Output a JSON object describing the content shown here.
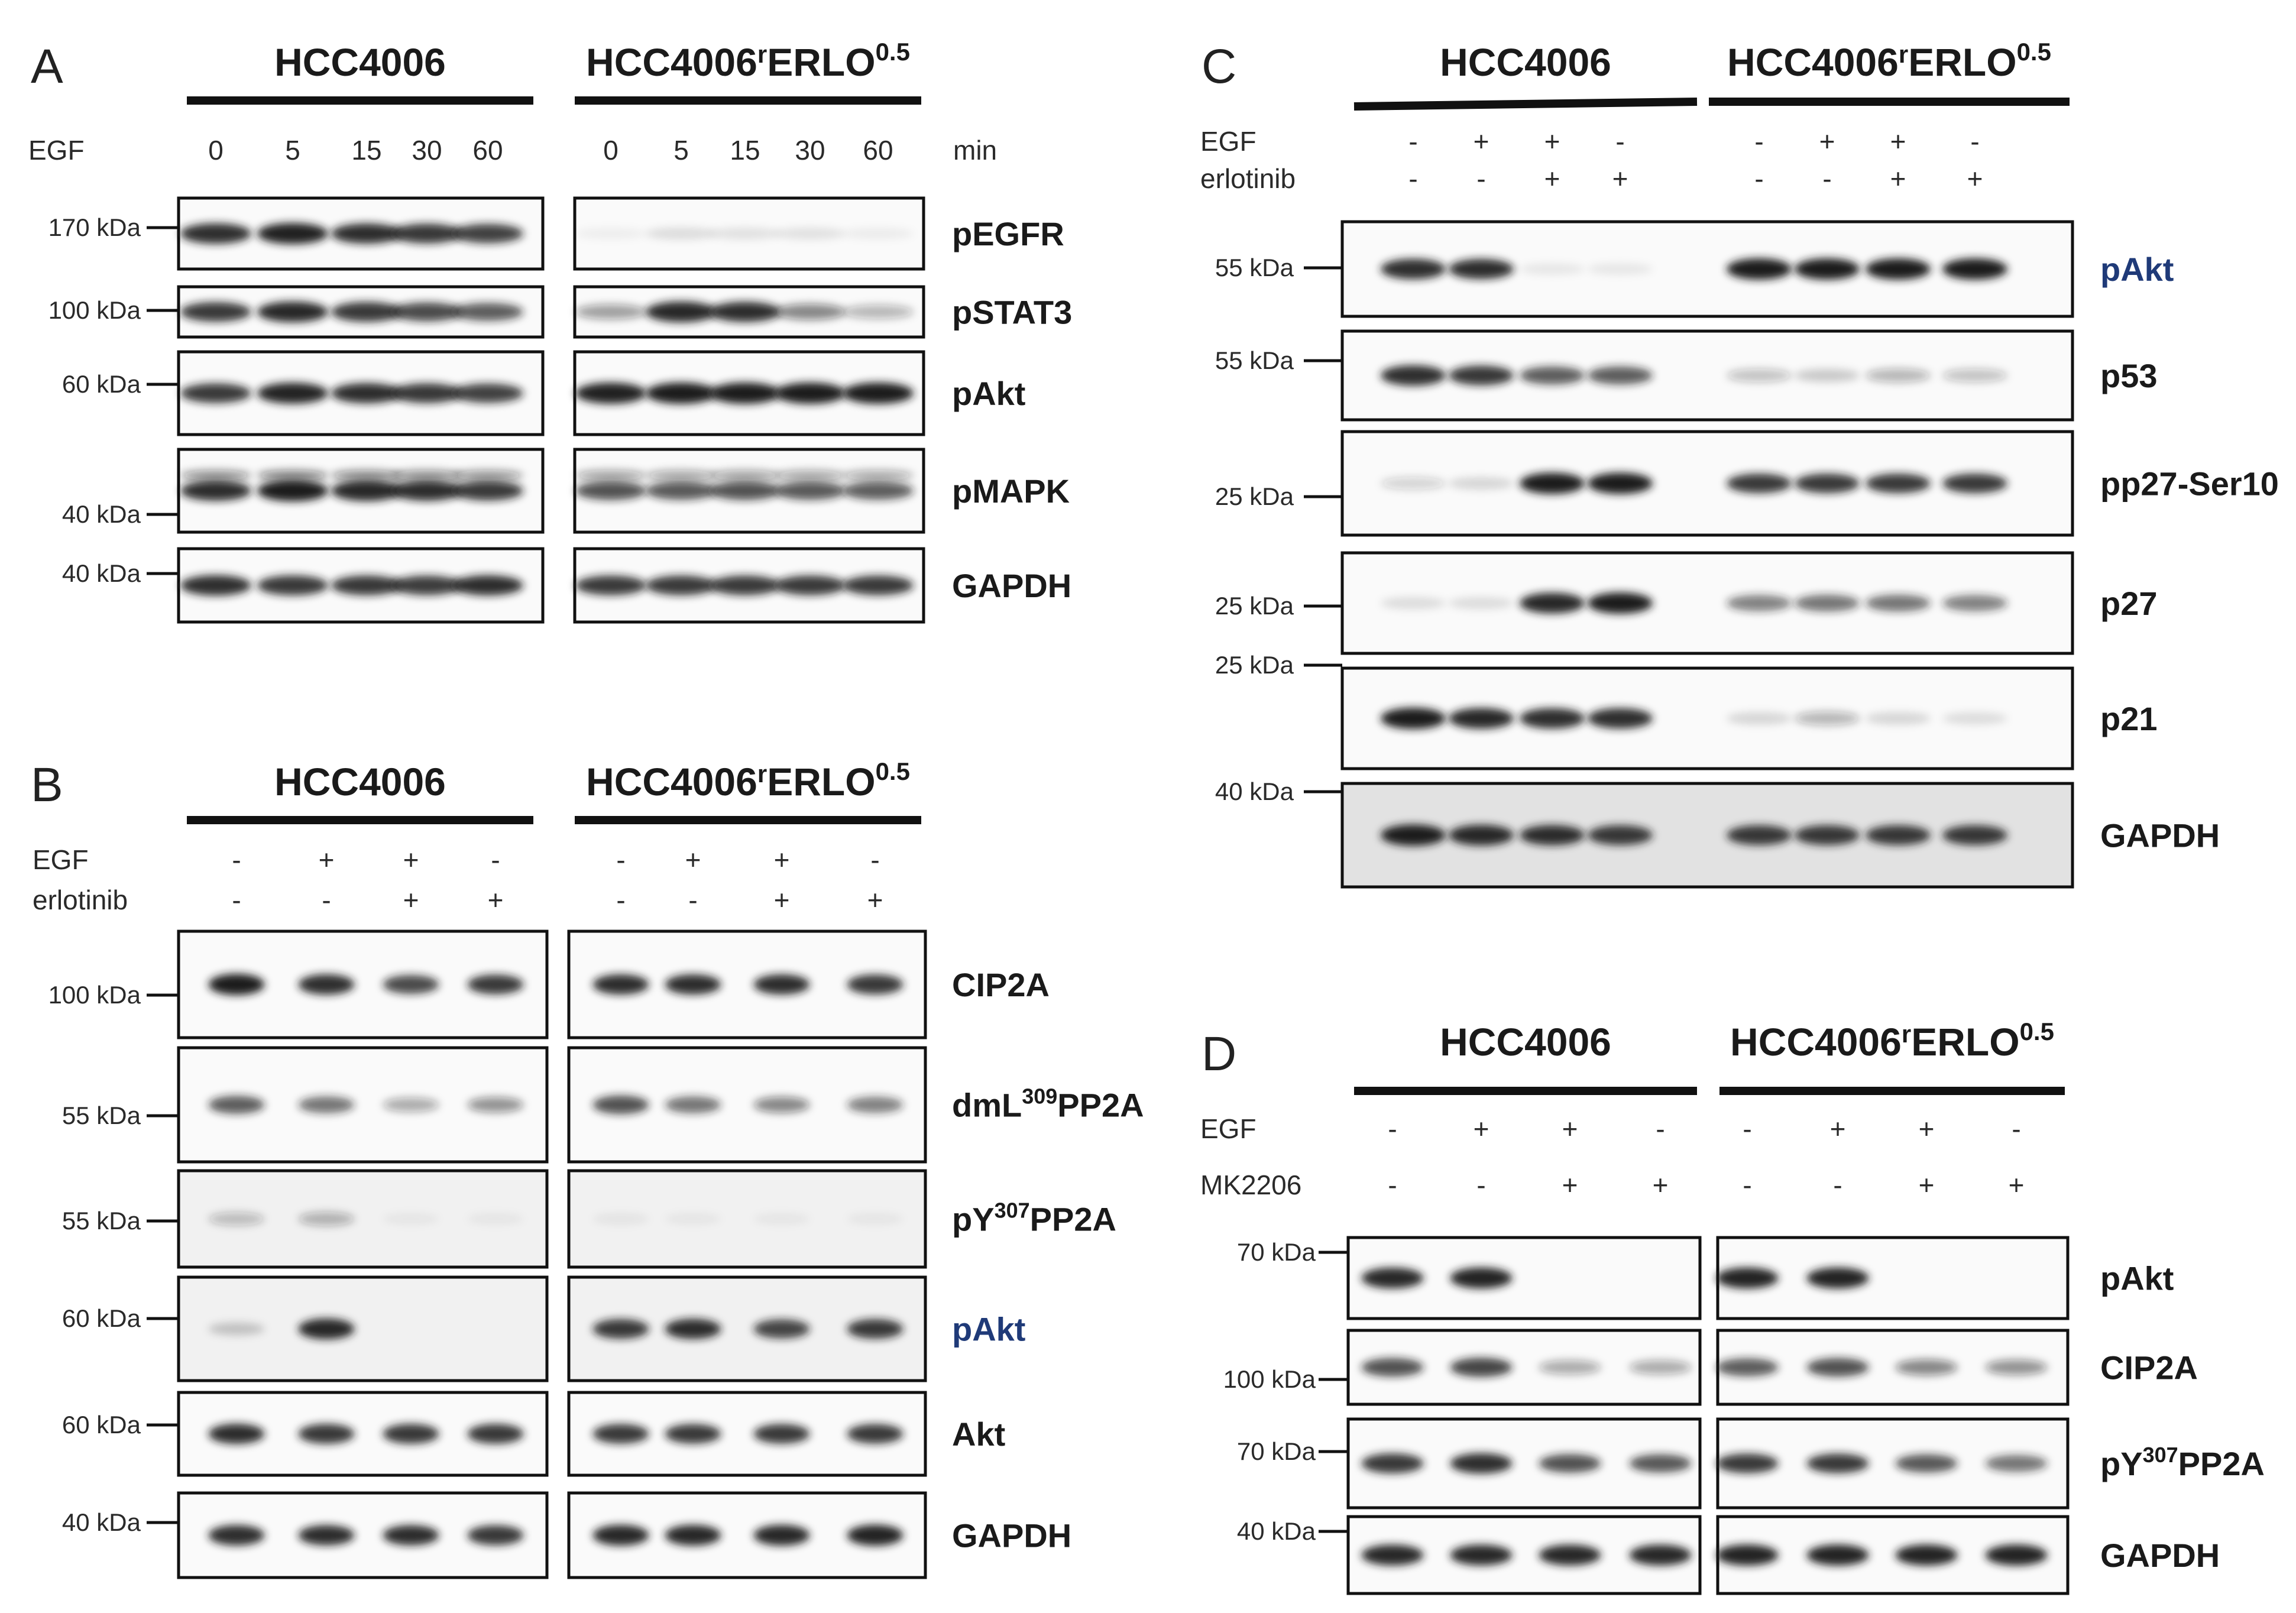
{
  "panels": [
    {
      "letter": "A",
      "groups": [
        {
          "name": "HCC4006"
        },
        {
          "name": "HCC4006",
          "sup": "r",
          "rest": "ERLO",
          "sup2": "0.5"
        }
      ],
      "treatments": [
        {
          "label": "EGF",
          "values": [
            "0",
            "5",
            "15",
            "30",
            "60",
            "0",
            "5",
            "15",
            "30",
            "60"
          ],
          "unit": "min"
        }
      ],
      "blots": [
        {
          "marker": "170 kDa",
          "protein": "pEGFR"
        },
        {
          "marker": "100 kDa",
          "protein": "pSTAT3"
        },
        {
          "marker": "60 kDa",
          "protein": "pAkt"
        },
        {
          "marker": "40 kDa",
          "protein": "pMAPK"
        },
        {
          "marker": "40 kDa",
          "protein": "GAPDH"
        }
      ]
    },
    {
      "letter": "B",
      "groups": [
        {
          "name": "HCC4006"
        },
        {
          "name": "HCC4006",
          "sup": "r",
          "rest": "ERLO",
          "sup2": "0.5"
        }
      ],
      "treatments": [
        {
          "label": "EGF",
          "values": [
            "-",
            "+",
            "+",
            "-",
            "-",
            "+",
            "+",
            "-"
          ]
        },
        {
          "label": "erlotinib",
          "values": [
            "-",
            "-",
            "+",
            "+",
            "-",
            "-",
            "+",
            "+"
          ]
        }
      ],
      "blots": [
        {
          "marker": "100 kDa",
          "protein": "CIP2A"
        },
        {
          "marker": "55 kDa",
          "protein": "dmL",
          "psup": "309",
          "prest": "PP2A"
        },
        {
          "marker": "55 kDa",
          "protein": "pY",
          "psup": "307",
          "prest": "PP2A"
        },
        {
          "marker": "60 kDa",
          "protein": "pAkt",
          "color": "#1f3a78"
        },
        {
          "marker": "60 kDa",
          "protein": "Akt"
        },
        {
          "marker": "40 kDa",
          "protein": "GAPDH"
        }
      ]
    },
    {
      "letter": "C",
      "groups": [
        {
          "name": "HCC4006"
        },
        {
          "name": "HCC4006",
          "sup": "r",
          "rest": "ERLO",
          "sup2": "0.5"
        }
      ],
      "treatments": [
        {
          "label": "EGF",
          "values": [
            "-",
            "+",
            "+",
            "-",
            "-",
            "+",
            "+",
            "-"
          ]
        },
        {
          "label": "erlotinib",
          "values": [
            "-",
            "-",
            "+",
            "+",
            "-",
            "-",
            "+",
            "+"
          ]
        }
      ],
      "blots": [
        {
          "marker": "55 kDa",
          "protein": "pAkt",
          "color": "#1f3a78"
        },
        {
          "marker": "55 kDa",
          "protein": "p53"
        },
        {
          "marker": "25 kDa",
          "protein": "pp27-Ser10"
        },
        {
          "marker": "25 kDa",
          "protein": "p27"
        },
        {
          "marker": "25 kDa",
          "protein": "p21"
        },
        {
          "marker": "40 kDa",
          "protein": "GAPDH"
        }
      ]
    },
    {
      "letter": "D",
      "groups": [
        {
          "name": "HCC4006"
        },
        {
          "name": "HCC4006",
          "sup": "r",
          "rest": "ERLO",
          "sup2": "0.5"
        }
      ],
      "treatments": [
        {
          "label": "EGF",
          "values": [
            "-",
            "+",
            "+",
            "-",
            "-",
            "+",
            "+",
            "-"
          ]
        },
        {
          "label": "MK2206",
          "values": [
            "-",
            "-",
            "+",
            "+",
            "-",
            "-",
            "+",
            "+"
          ]
        }
      ],
      "blots": [
        {
          "marker": "70 kDa",
          "protein": "pAkt"
        },
        {
          "marker": "100 kDa",
          "protein": "CIP2A"
        },
        {
          "marker": "70 kDa",
          "protein": "pY",
          "psup": "307",
          "prest": "PP2A"
        },
        {
          "marker": "40 kDa",
          "protein": "GAPDH"
        }
      ]
    }
  ],
  "colors": {
    "band": "#1b1b1b",
    "frame": "#111111",
    "highlight": "#1f3a78"
  }
}
